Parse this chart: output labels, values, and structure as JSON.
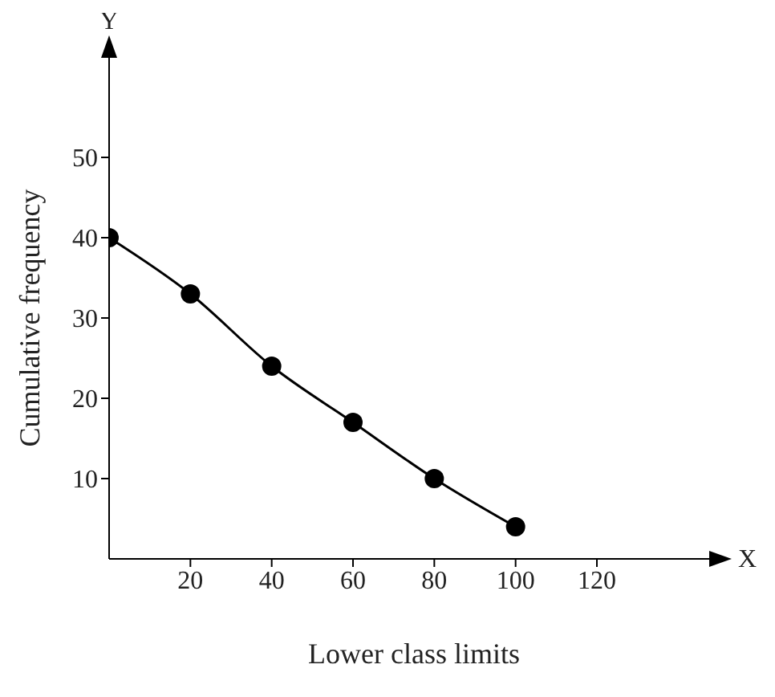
{
  "chart_data": {
    "type": "line",
    "xlabel": "Lower class limits",
    "ylabel": "Cumulative frequency",
    "annotations": [
      "Y",
      "X"
    ],
    "x": [
      0,
      20,
      40,
      60,
      80,
      100
    ],
    "series": [
      {
        "color": "#000000",
        "values": [
          40,
          33,
          24,
          17,
          10,
          4
        ]
      }
    ],
    "xlim": [
      0,
      150
    ],
    "xticks": [
      20,
      40,
      60,
      80,
      100,
      120
    ],
    "ylim": [
      0,
      60
    ],
    "yticks": [
      10,
      20,
      30,
      40,
      50
    ],
    "marker": "circle",
    "line_style": "solid",
    "grid": false,
    "legend": false
  }
}
